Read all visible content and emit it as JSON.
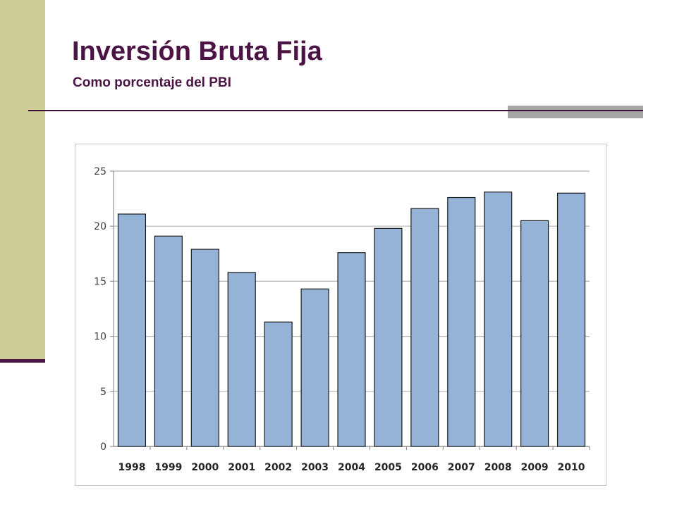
{
  "slide": {
    "title": "Inversión Bruta Fija",
    "subtitle": "Como porcentaje del PBI"
  },
  "colors": {
    "title": "#4b1444",
    "side_bar": "#cccc99",
    "bar_fill": "#95b3d7",
    "bar_stroke": "#1a1a1a",
    "grid": "#b3b3b3"
  },
  "chart_data": {
    "type": "bar",
    "title": "",
    "xlabel": "",
    "ylabel": "",
    "categories": [
      "1998",
      "1999",
      "2000",
      "2001",
      "2002",
      "2003",
      "2004",
      "2005",
      "2006",
      "2007",
      "2008",
      "2009",
      "2010"
    ],
    "values": [
      21.1,
      19.1,
      17.9,
      15.8,
      11.3,
      14.3,
      17.6,
      19.8,
      21.6,
      22.6,
      23.1,
      20.5,
      23.0
    ],
    "ylim": [
      0,
      25
    ],
    "yticks": [
      0,
      5,
      10,
      15,
      20,
      25
    ],
    "grid": true,
    "legend": false
  }
}
